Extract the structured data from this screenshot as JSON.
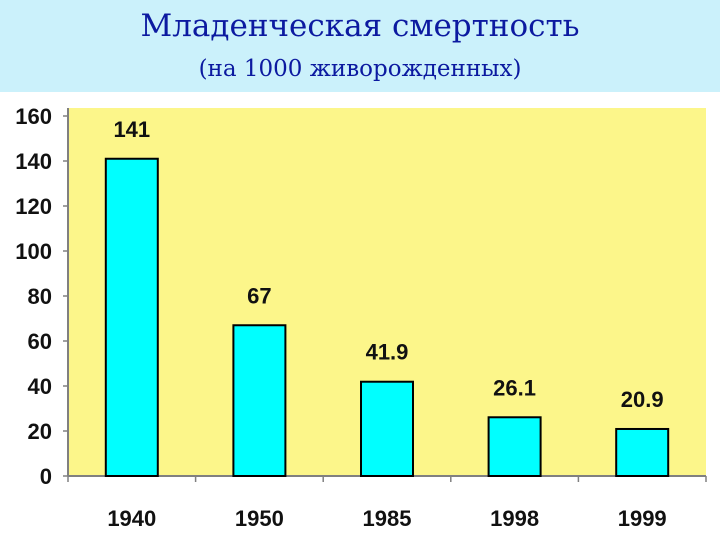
{
  "header": {
    "title": "Младенческая смертность",
    "subtitle": "(на 1000 живорожденных)"
  },
  "colors": {
    "header_bg": "#cbf1fb",
    "title_text": "#0c1aa0",
    "plot_bg": "#fcf68a",
    "bar_fill": "#00ffff",
    "bar_stroke": "#000000"
  },
  "chart_data": {
    "type": "bar",
    "title": "Младенческая смертность",
    "subtitle": "(на 1000 живорожденных)",
    "categories": [
      "1940",
      "1950",
      "1985",
      "1998",
      "1999"
    ],
    "values": [
      141,
      67,
      41.9,
      26.1,
      20.9
    ],
    "value_labels": [
      "141",
      "67",
      "41.9",
      "26.1",
      "20.9"
    ],
    "ylim": [
      0,
      160
    ],
    "yticks": [
      0,
      20,
      40,
      60,
      80,
      100,
      120,
      140,
      160
    ],
    "grid": false,
    "legend": "none"
  }
}
